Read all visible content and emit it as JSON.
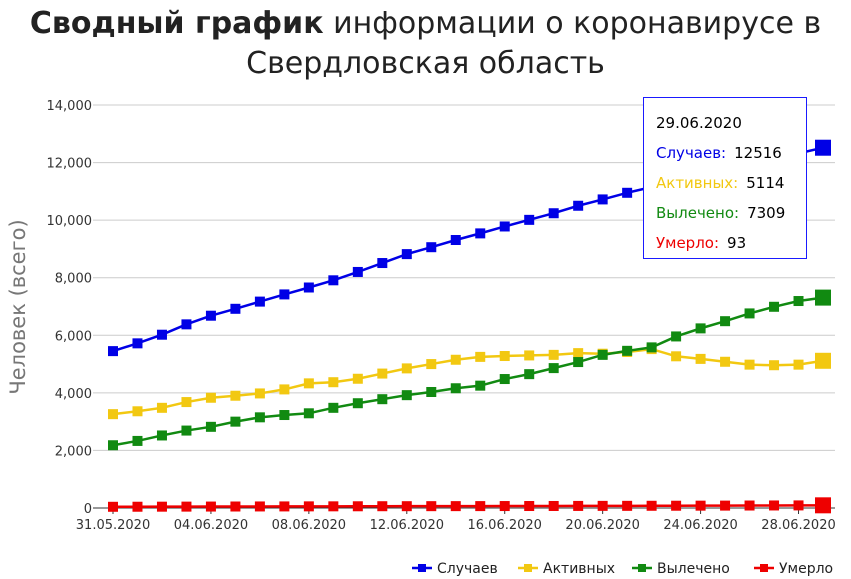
{
  "title_bold": "Сводный график",
  "title_rest": " информации о коронавирусе в",
  "title_line2": "Свердловская область",
  "colors": {
    "cases": "#0000e6",
    "active": "#f2c811",
    "recovered": "#118a11",
    "deaths": "#ee0000",
    "grid": "#cccccc"
  },
  "tooltip": {
    "date": "29.06.2020",
    "rows": [
      {
        "label": "Случаев:",
        "value": "12516",
        "color": "#0000e6"
      },
      {
        "label": "Активных:",
        "value": "5114",
        "color": "#f2c811"
      },
      {
        "label": "Вылечено:",
        "value": "7309",
        "color": "#118a11"
      },
      {
        "label": "Умерло:",
        "value": "93",
        "color": "#ee0000"
      }
    ]
  },
  "chart_data": {
    "type": "line",
    "title": "Сводный график информации о коронавирусе в Свердловская область",
    "ylabel": "Человек (всего)",
    "xlabel": "",
    "ylim": [
      0,
      14000
    ],
    "yticks": [
      "0",
      "2,000",
      "4,000",
      "6,000",
      "8,000",
      "10,000",
      "12,000",
      "14,000"
    ],
    "ytick_values": [
      0,
      2000,
      4000,
      6000,
      8000,
      10000,
      12000,
      14000
    ],
    "xticks": [
      "31.05.2020",
      "04.06.2020",
      "08.06.2020",
      "12.06.2020",
      "16.06.2020",
      "20.06.2020",
      "24.06.2020",
      "28.06.2020"
    ],
    "xtick_index": [
      0,
      4,
      8,
      12,
      16,
      20,
      24,
      28
    ],
    "grid": true,
    "legend_position": "bottom-right",
    "categories": [
      "31.05.2020",
      "01.06.2020",
      "02.06.2020",
      "03.06.2020",
      "04.06.2020",
      "05.06.2020",
      "06.06.2020",
      "07.06.2020",
      "08.06.2020",
      "09.06.2020",
      "10.06.2020",
      "11.06.2020",
      "12.06.2020",
      "13.06.2020",
      "14.06.2020",
      "15.06.2020",
      "16.06.2020",
      "17.06.2020",
      "18.06.2020",
      "19.06.2020",
      "20.06.2020",
      "21.06.2020",
      "22.06.2020",
      "23.06.2020",
      "24.06.2020",
      "25.06.2020",
      "26.06.2020",
      "27.06.2020",
      "28.06.2020",
      "29.06.2020"
    ],
    "series": [
      {
        "name": "Случаев",
        "color": "#0000e6",
        "values": [
          5450,
          5720,
          6020,
          6380,
          6680,
          6920,
          7170,
          7420,
          7660,
          7910,
          8200,
          8510,
          8820,
          9060,
          9310,
          9540,
          9780,
          10010,
          10240,
          10500,
          10720,
          10950,
          11150,
          11340,
          11530,
          11720,
          11920,
          12120,
          12320,
          12516
        ]
      },
      {
        "name": "Активных",
        "color": "#f2c811",
        "values": [
          3260,
          3360,
          3480,
          3680,
          3830,
          3900,
          3980,
          4120,
          4330,
          4370,
          4490,
          4670,
          4850,
          5000,
          5150,
          5250,
          5280,
          5300,
          5320,
          5380,
          5360,
          5420,
          5520,
          5270,
          5180,
          5080,
          4980,
          4960,
          4980,
          5114
        ]
      },
      {
        "name": "Вылечено",
        "color": "#118a11",
        "values": [
          2180,
          2330,
          2520,
          2690,
          2820,
          3000,
          3150,
          3230,
          3290,
          3480,
          3640,
          3780,
          3920,
          4030,
          4160,
          4250,
          4480,
          4650,
          4860,
          5070,
          5320,
          5460,
          5580,
          5960,
          6240,
          6490,
          6760,
          6990,
          7190,
          7309
        ]
      },
      {
        "name": "Умерло",
        "color": "#ee0000",
        "values": [
          42,
          44,
          46,
          48,
          50,
          52,
          54,
          55,
          57,
          58,
          60,
          62,
          63,
          64,
          65,
          66,
          68,
          69,
          70,
          72,
          74,
          75,
          77,
          79,
          81,
          83,
          86,
          88,
          90,
          93
        ]
      }
    ]
  }
}
